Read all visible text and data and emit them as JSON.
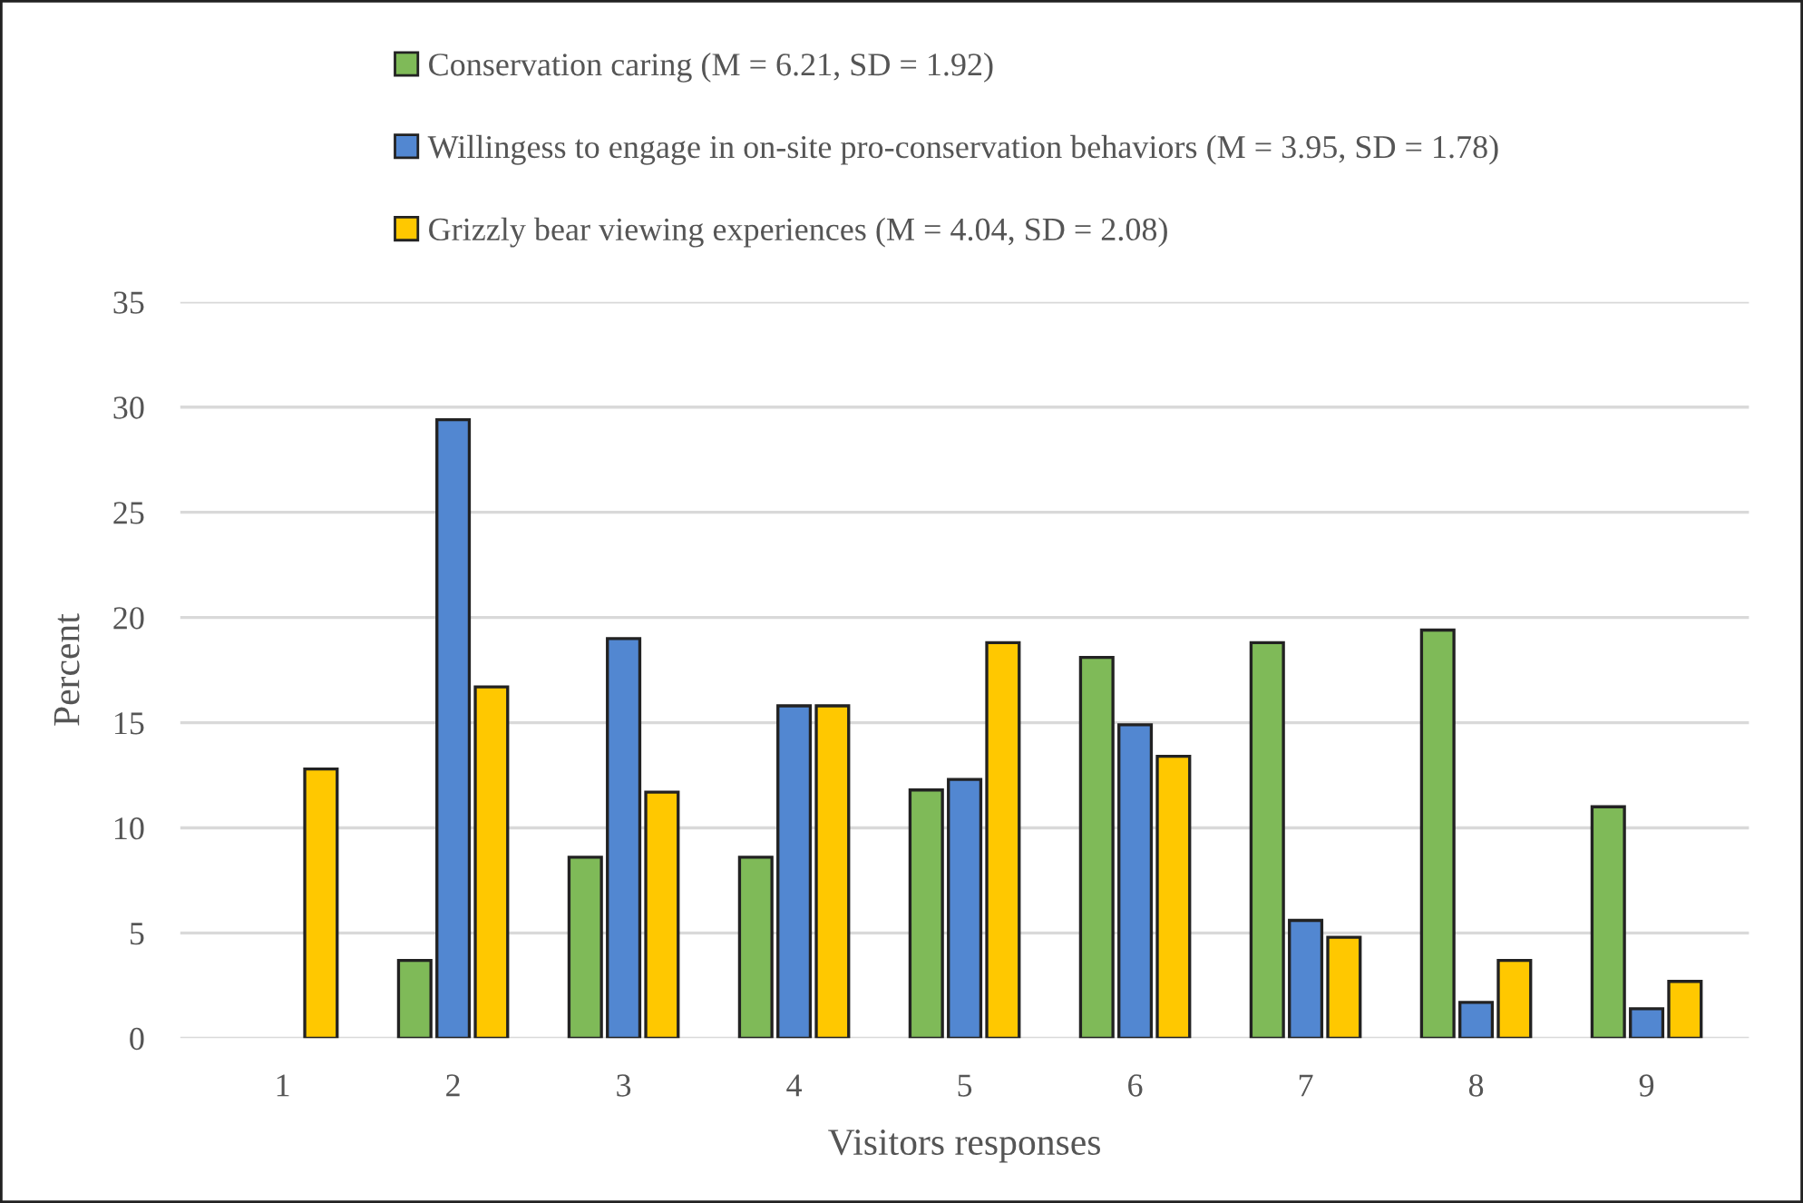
{
  "chart_data": {
    "type": "bar",
    "xlabel": "Visitors responses",
    "ylabel": "Percent",
    "categories": [
      "1",
      "2",
      "3",
      "4",
      "5",
      "6",
      "7",
      "8",
      "9"
    ],
    "series": [
      {
        "name": "Conservation caring (M = 6.21, SD = 1.92)",
        "color": "#7fba58",
        "values": [
          null,
          3.7,
          8.6,
          8.6,
          11.8,
          18.1,
          18.8,
          19.4,
          11.0
        ]
      },
      {
        "name": "Willingess to engage in on-site pro-conservation behaviors (M = 3.95, SD = 1.78)",
        "color": "#5287d1",
        "values": [
          null,
          29.4,
          19.0,
          15.8,
          12.3,
          14.9,
          5.6,
          1.7,
          1.4
        ]
      },
      {
        "name": "Grizzly bear viewing experiences (M = 4.04, SD = 2.08)",
        "color": "#ffc800",
        "values": [
          12.8,
          16.7,
          11.7,
          15.8,
          18.8,
          13.4,
          4.8,
          3.7,
          2.7
        ]
      }
    ],
    "ylim": [
      0,
      35
    ],
    "yticks": [
      0,
      5,
      10,
      15,
      20,
      25,
      30,
      35
    ],
    "grid": "y",
    "legend": "top"
  }
}
